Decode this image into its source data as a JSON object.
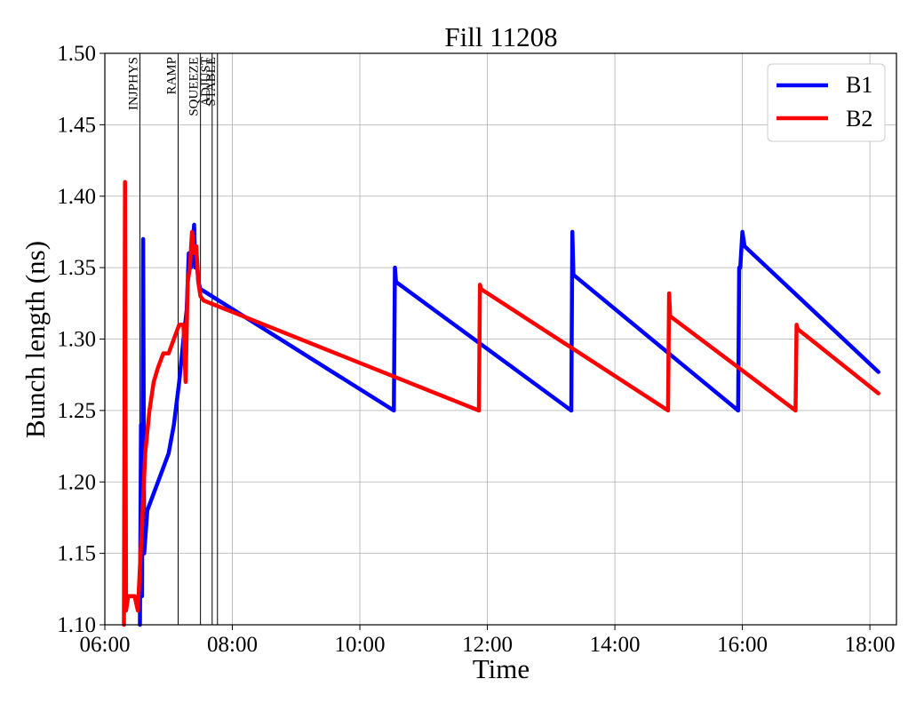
{
  "chart_data": {
    "type": "line",
    "title": "Fill 11208",
    "xlabel": "Time",
    "ylabel": "Bunch length (ns)",
    "x_unit": "time of day (hh:mm)",
    "xlim": [
      "06:00",
      "18:25"
    ],
    "ylim": [
      1.1,
      1.5
    ],
    "grid": true,
    "legend_position": "top-right",
    "x_ticks": [
      "06:00",
      "08:00",
      "10:00",
      "12:00",
      "14:00",
      "16:00",
      "18:00"
    ],
    "y_ticks": [
      "1.10",
      "1.15",
      "1.20",
      "1.25",
      "1.30",
      "1.35",
      "1.40",
      "1.45",
      "1.50"
    ],
    "beam_modes": [
      {
        "label": "INJPHYS",
        "time": "06:33"
      },
      {
        "label": "RAMP",
        "time": "07:09"
      },
      {
        "label": "SQUEEZE",
        "time": "07:30"
      },
      {
        "label": "ADJUST",
        "time": "07:41"
      },
      {
        "label": "STABLE",
        "time": "07:46"
      }
    ],
    "series": [
      {
        "name": "B1",
        "color": "#0000ff",
        "points": [
          [
            "06:33",
            1.1
          ],
          [
            "06:34",
            1.24
          ],
          [
            "06:35",
            1.12
          ],
          [
            "06:36",
            1.37
          ],
          [
            "06:37",
            1.15
          ],
          [
            "06:40",
            1.18
          ],
          [
            "06:45",
            1.19
          ],
          [
            "06:50",
            1.2
          ],
          [
            "06:55",
            1.21
          ],
          [
            "07:00",
            1.22
          ],
          [
            "07:05",
            1.24
          ],
          [
            "07:10",
            1.27
          ],
          [
            "07:14",
            1.3
          ],
          [
            "07:17",
            1.32
          ],
          [
            "07:19",
            1.36
          ],
          [
            "07:21",
            1.35
          ],
          [
            "07:23",
            1.37
          ],
          [
            "07:24",
            1.38
          ],
          [
            "07:25",
            1.35
          ],
          [
            "07:26",
            1.36
          ],
          [
            "07:28",
            1.34
          ],
          [
            "07:30",
            1.335
          ],
          [
            "10:32",
            1.25
          ],
          [
            "10:33",
            1.35
          ],
          [
            "10:34",
            1.34
          ],
          [
            "13:19",
            1.25
          ],
          [
            "13:20",
            1.375
          ],
          [
            "13:21",
            1.345
          ],
          [
            "15:56",
            1.25
          ],
          [
            "15:57",
            1.35
          ],
          [
            "15:58",
            1.35
          ],
          [
            "16:00",
            1.375
          ],
          [
            "16:02",
            1.365
          ],
          [
            "18:08",
            1.277
          ]
        ]
      },
      {
        "name": "B2",
        "color": "#ff0000",
        "points": [
          [
            "06:18",
            1.1
          ],
          [
            "06:19",
            1.41
          ],
          [
            "06:20",
            1.11
          ],
          [
            "06:22",
            1.12
          ],
          [
            "06:25",
            1.12
          ],
          [
            "06:28",
            1.12
          ],
          [
            "06:31",
            1.11
          ],
          [
            "06:35",
            1.17
          ],
          [
            "06:38",
            1.22
          ],
          [
            "06:42",
            1.25
          ],
          [
            "06:46",
            1.27
          ],
          [
            "06:50",
            1.28
          ],
          [
            "06:55",
            1.29
          ],
          [
            "07:00",
            1.29
          ],
          [
            "07:05",
            1.3
          ],
          [
            "07:10",
            1.31
          ],
          [
            "07:14",
            1.31
          ],
          [
            "07:16",
            1.27
          ],
          [
            "07:18",
            1.34
          ],
          [
            "07:20",
            1.35
          ],
          [
            "07:22",
            1.375
          ],
          [
            "07:24",
            1.36
          ],
          [
            "07:26",
            1.365
          ],
          [
            "07:28",
            1.34
          ],
          [
            "07:30",
            1.33
          ],
          [
            "07:33",
            1.327
          ],
          [
            "11:52",
            1.25
          ],
          [
            "11:53",
            1.338
          ],
          [
            "11:54",
            1.335
          ],
          [
            "14:50",
            1.25
          ],
          [
            "14:51",
            1.332
          ],
          [
            "14:52",
            1.316
          ],
          [
            "16:50",
            1.25
          ],
          [
            "16:51",
            1.31
          ],
          [
            "16:52",
            1.307
          ],
          [
            "18:08",
            1.262
          ]
        ]
      }
    ]
  }
}
